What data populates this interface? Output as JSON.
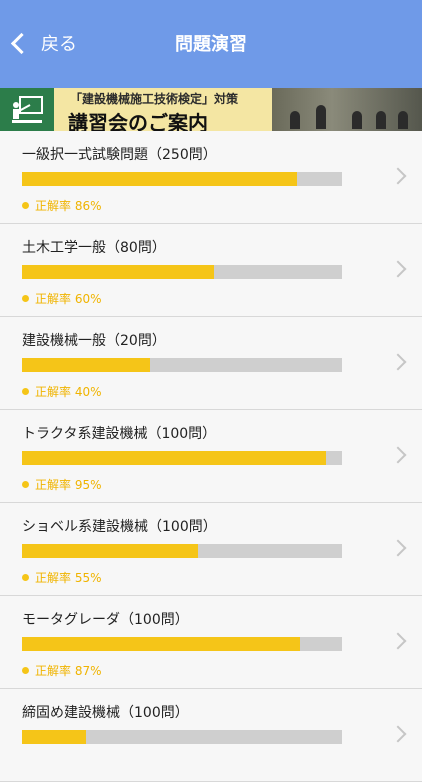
{
  "nav": {
    "back_label": "戻る",
    "title": "問題演習"
  },
  "banner": {
    "top_text": "「建設機械施工技術検定」対策",
    "main_text": "講習会のご案内"
  },
  "colors": {
    "nav": "#6f9ae8",
    "bar_fill": "#f5c518",
    "bar_bg": "#cfcfcf"
  },
  "items": [
    {
      "title": "一級択一式試験問題（250問）",
      "rate_label": "正解率 86%",
      "progress": 0.86
    },
    {
      "title": "土木工学一般（80問）",
      "rate_label": "正解率 60%",
      "progress": 0.6
    },
    {
      "title": "建設機械一般（20問）",
      "rate_label": "正解率 40%",
      "progress": 0.4
    },
    {
      "title": "トラクタ系建設機械（100問）",
      "rate_label": "正解率 95%",
      "progress": 0.95
    },
    {
      "title": "ショベル系建設機械（100問）",
      "rate_label": "正解率 55%",
      "progress": 0.55
    },
    {
      "title": "モータグレーダ（100問）",
      "rate_label": "正解率 87%",
      "progress": 0.87
    },
    {
      "title": "締固め建設機械（100問）",
      "rate_label": "",
      "progress": 0.2
    }
  ]
}
